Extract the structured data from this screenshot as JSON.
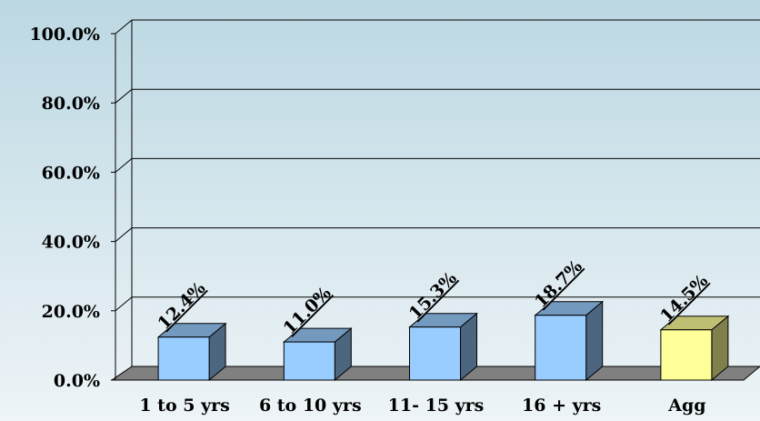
{
  "chart_data": {
    "type": "bar3d",
    "categories": [
      "1 to 5 yrs",
      "6 to 10 yrs",
      "11- 15 yrs",
      "16 + yrs",
      "Agg"
    ],
    "values": [
      12.4,
      11.0,
      15.3,
      18.7,
      14.5
    ],
    "value_labels": [
      "12.4%",
      "11.0%",
      "15.3%",
      "18.7%",
      "14.5%"
    ],
    "colors": [
      "#99ccff",
      "#99ccff",
      "#99ccff",
      "#99ccff",
      "#ffff99"
    ],
    "ylim": [
      0,
      100
    ],
    "yticks": [
      {
        "value": 0,
        "label": "0.0%"
      },
      {
        "value": 20,
        "label": "20.0%"
      },
      {
        "value": 40,
        "label": "40.0%"
      },
      {
        "value": 60,
        "label": "60.0%"
      },
      {
        "value": 80,
        "label": "80.0%"
      },
      {
        "value": 100,
        "label": "100.0%"
      }
    ],
    "grid": true
  }
}
